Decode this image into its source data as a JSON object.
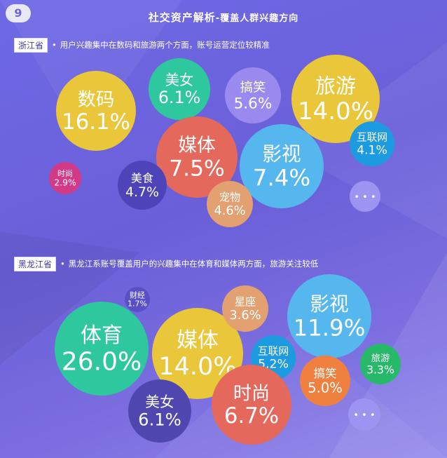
{
  "page_number": "9",
  "title": "社交资产解析",
  "subtitle": "-覆盖人群兴趣方向",
  "colors": {
    "background": "#6c66de",
    "badge_text": "#3f3a9c"
  },
  "chart_data": [
    {
      "type": "bubble",
      "region": "浙江省",
      "description": "用户兴趣集中在数码和旅游两个方面，账号运营定位较精准",
      "more_label": "• • •",
      "bubbles": [
        {
          "name": "数码",
          "value": 16.1,
          "label": "16.1%",
          "color": "#e9c63a"
        },
        {
          "name": "美女",
          "value": 6.1,
          "label": "6.1%",
          "color": "#2ec79e"
        },
        {
          "name": "搞笑",
          "value": 5.6,
          "label": "5.6%",
          "color": "#9a8af0"
        },
        {
          "name": "旅游",
          "value": 14.0,
          "label": "14.0%",
          "color": "#e9c63a"
        },
        {
          "name": "媒体",
          "value": 7.5,
          "label": "7.5%",
          "color": "#e4685c"
        },
        {
          "name": "影视",
          "value": 7.4,
          "label": "7.4%",
          "color": "#56b7ee"
        },
        {
          "name": "互联网",
          "value": 4.1,
          "label": "4.1%",
          "color": "#1d9be0"
        },
        {
          "name": "时尚",
          "value": 2.9,
          "label": "2.9%",
          "color": "#d23a87"
        },
        {
          "name": "美食",
          "value": 4.7,
          "label": "4.7%",
          "color": "#4c44b8"
        },
        {
          "name": "宠物",
          "value": 4.6,
          "label": "4.6%",
          "color": "#e3a071"
        }
      ]
    },
    {
      "type": "bubble",
      "region": "黑龙江省",
      "description": "黑龙江系账号覆盖用户的兴趣集中在体育和媒体两方面，旅游关注较低",
      "more_label": "• • •",
      "bubbles": [
        {
          "name": "财经",
          "value": 1.7,
          "label": "1.7%",
          "color": "#5a50c6"
        },
        {
          "name": "体育",
          "value": 26.0,
          "label": "26.0%",
          "color": "#2ec79e"
        },
        {
          "name": "媒体",
          "value": 14.0,
          "label": "14.0%",
          "color": "#e9c63a"
        },
        {
          "name": "星座",
          "value": 3.6,
          "label": "3.6%",
          "color": "#e3a071"
        },
        {
          "name": "影视",
          "value": 11.9,
          "label": "11.9%",
          "color": "#56b7ee"
        },
        {
          "name": "互联网",
          "value": 5.2,
          "label": "5.2%",
          "color": "#1d9be0"
        },
        {
          "name": "搞笑",
          "value": 5.0,
          "label": "5.0%",
          "color": "#ef8040"
        },
        {
          "name": "旅游",
          "value": 3.3,
          "label": "3.3%",
          "color": "#27b86a"
        },
        {
          "name": "美女",
          "value": 6.1,
          "label": "6.1%",
          "color": "#4f46b0"
        },
        {
          "name": "时尚",
          "value": 6.7,
          "label": "6.7%",
          "color": "#e4685c"
        }
      ]
    }
  ]
}
